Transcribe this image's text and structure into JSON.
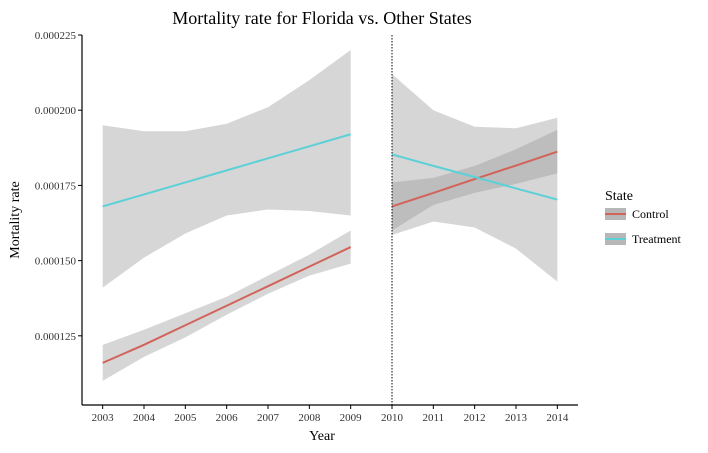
{
  "chart_data": {
    "type": "line",
    "title": "Mortality rate for Florida vs. Other States",
    "xlabel": "Year",
    "ylabel": "Mortality rate",
    "xlim": [
      2002.5,
      2014.5
    ],
    "ylim": [
      0.000102,
      0.000225
    ],
    "x_ticks": [
      2003,
      2004,
      2005,
      2006,
      2007,
      2008,
      2009,
      2010,
      2011,
      2012,
      2013,
      2014
    ],
    "x_tick_labels": [
      "2003",
      "2004",
      "2005",
      "2006",
      "2007",
      "2008",
      "2009",
      "2010",
      "2011",
      "2012",
      "2013",
      "2014"
    ],
    "y_ticks": [
      0.000125,
      0.00015,
      0.000175,
      0.0002,
      0.000225
    ],
    "y_tick_labels": [
      "0.000125",
      "0.000150",
      "0.000175",
      "0.000200",
      "0.000225"
    ],
    "vline_x": 2010,
    "grid": false,
    "legend": {
      "title": "State",
      "position": "right",
      "entries": [
        "Control",
        "Treatment"
      ]
    },
    "colors": {
      "Control": "#d2635a",
      "Treatment": "#5bd1d7",
      "ribbon": "#999999"
    },
    "series": [
      {
        "name": "Control",
        "segments": [
          {
            "x": [
              2003,
              2004,
              2005,
              2006,
              2007,
              2008,
              2009
            ],
            "y": [
              0.000116,
              0.000122,
              0.0001285,
              0.000135,
              0.0001415,
              0.000148,
              0.0001545
            ],
            "lower": [
              0.00011,
              0.000118,
              0.0001245,
              0.000132,
              0.000139,
              0.000145,
              0.000149
            ],
            "upper": [
              0.000122,
              0.000127,
              0.0001325,
              0.000138,
              0.000145,
              0.000152,
              0.00016
            ]
          },
          {
            "x": [
              2010,
              2011,
              2012,
              2013,
              2014
            ],
            "y": [
              0.000168,
              0.0001725,
              0.0001771,
              0.0001816,
              0.0001862
            ],
            "lower": [
              0.00016,
              0.0001685,
              0.0001725,
              0.0001755,
              0.000179
            ],
            "upper": [
              0.000176,
              0.0001775,
              0.0001815,
              0.000187,
              0.0001935
            ]
          }
        ]
      },
      {
        "name": "Treatment",
        "segments": [
          {
            "x": [
              2003,
              2004,
              2005,
              2006,
              2007,
              2008,
              2009
            ],
            "y": [
              0.000168,
              0.000172,
              0.000176,
              0.00018,
              0.000184,
              0.000188,
              0.000192
            ],
            "lower": [
              0.000141,
              0.000151,
              0.000159,
              0.000165,
              0.000167,
              0.0001665,
              0.000165
            ],
            "upper": [
              0.000195,
              0.000193,
              0.000193,
              0.0001955,
              0.000201,
              0.00021,
              0.00022
            ]
          },
          {
            "x": [
              2010,
              2011,
              2012,
              2013,
              2014
            ],
            "y": [
              0.0001853,
              0.0001815,
              0.0001778,
              0.000174,
              0.0001703
            ],
            "lower": [
              0.0001585,
              0.000163,
              0.000161,
              0.000154,
              0.000143
            ],
            "upper": [
              0.000212,
              0.0002,
              0.0001945,
              0.000194,
              0.0001975
            ]
          }
        ]
      }
    ]
  }
}
